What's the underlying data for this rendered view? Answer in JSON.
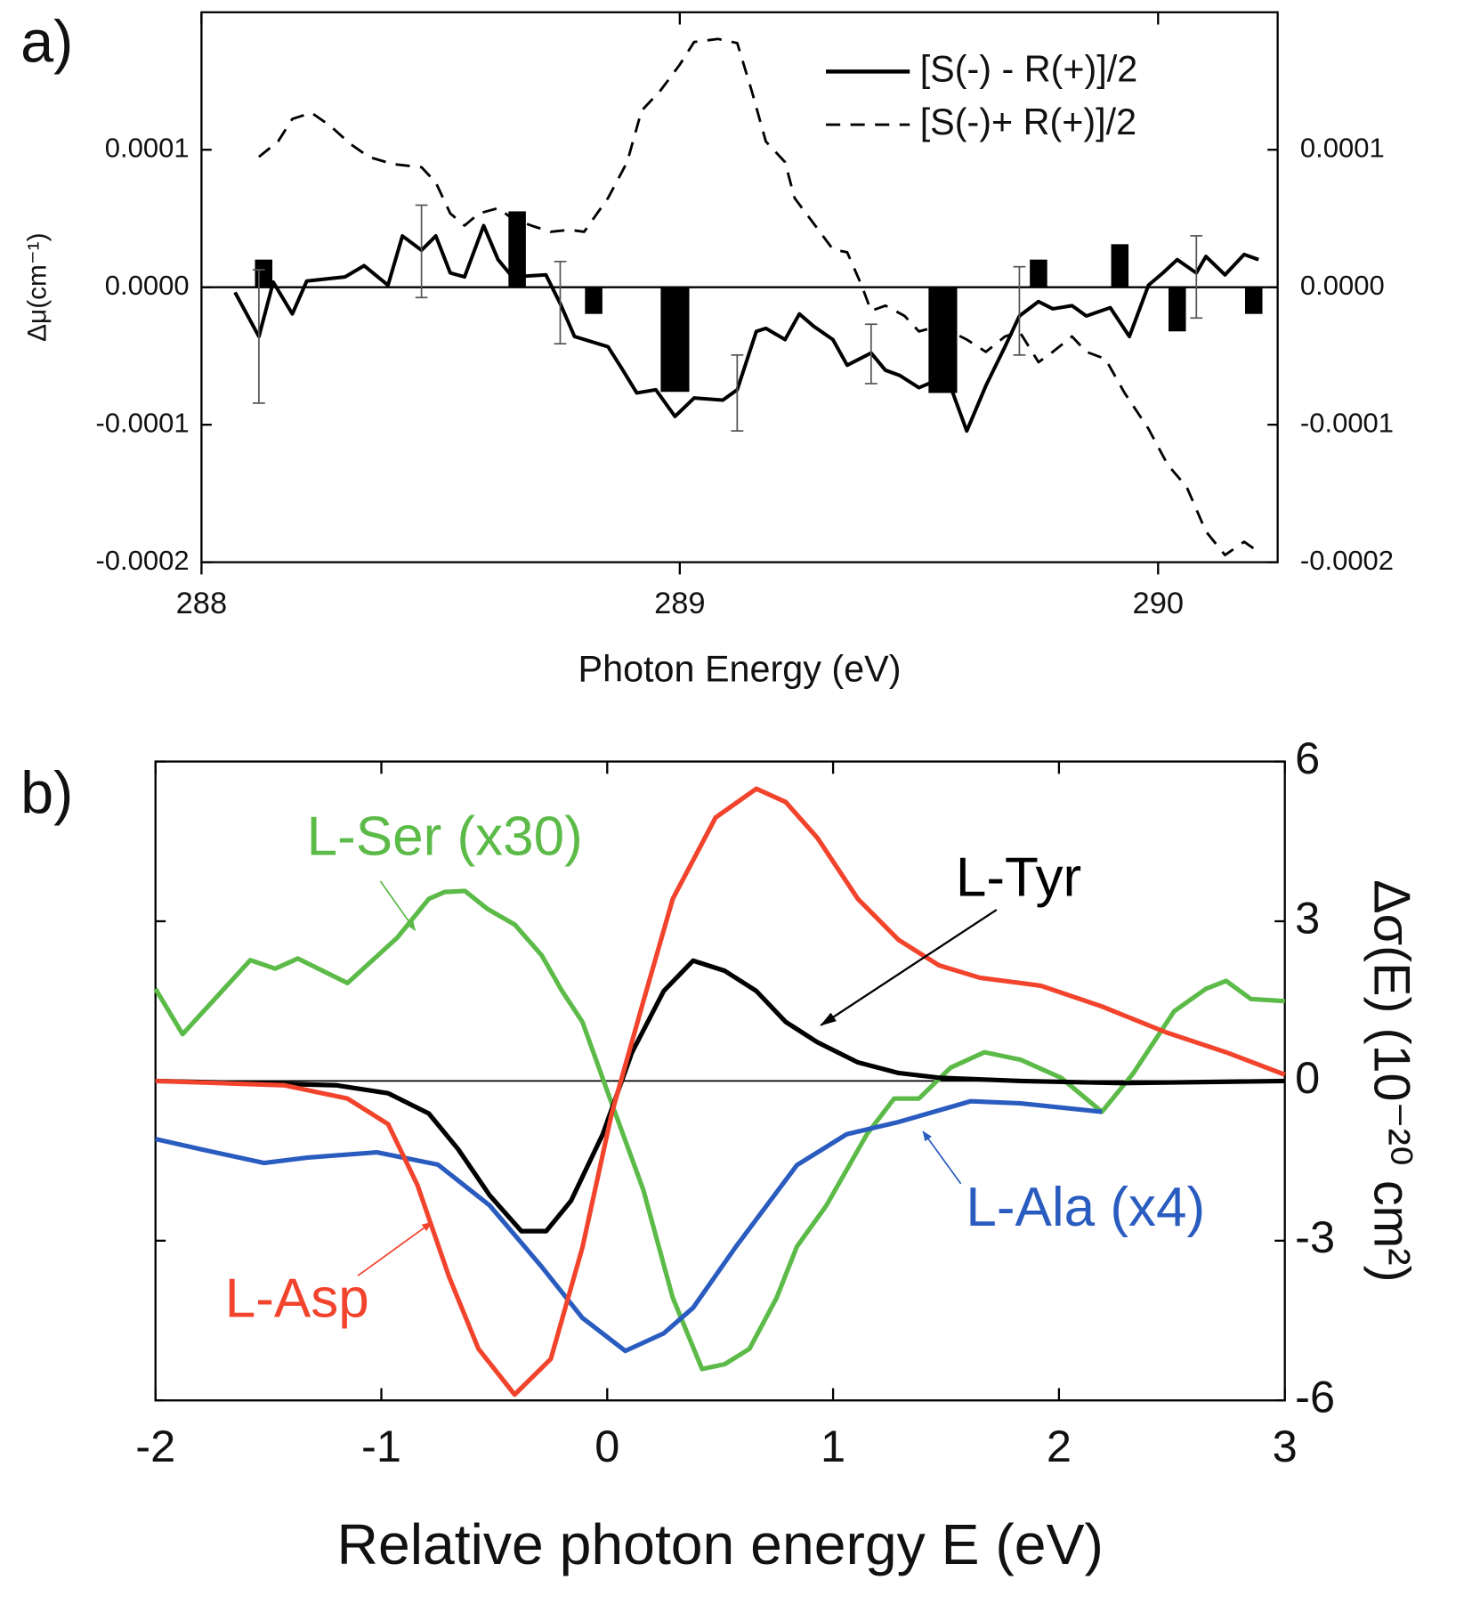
{
  "chart_data": [
    {
      "type": "line",
      "panel": "a)",
      "xlabel": "Photon Energy (eV)",
      "ylabel": "Δμ(cm⁻¹)",
      "xlim": [
        288,
        290.25
      ],
      "xticks": [
        288,
        289,
        290
      ],
      "ylim": [
        -0.0002,
        0.0002
      ],
      "yticks": [
        {
          "value": -0.0002,
          "label": "-0.0002"
        },
        {
          "value": -0.0001,
          "label": "-0.0001"
        },
        {
          "value": 0,
          "label": "0.0000"
        },
        {
          "value": 0.0001,
          "label": "0.0001"
        }
      ],
      "legend": "upper right",
      "series": [
        {
          "name": "[S(-) - R(+)]/2",
          "color": "#000000",
          "style": "solid",
          "x": [
            288.07,
            288.12,
            288.15,
            288.19,
            288.22,
            288.3,
            288.34,
            288.39,
            288.42,
            288.46,
            288.49,
            288.52,
            288.55,
            288.59,
            288.62,
            288.65,
            288.72,
            288.75,
            288.78,
            288.85,
            288.88,
            288.91,
            288.95,
            288.99,
            289.03,
            289.09,
            289.12,
            289.16,
            289.18,
            289.22,
            289.25,
            289.28,
            289.32,
            289.35,
            289.4,
            289.43,
            289.46,
            289.5,
            289.53,
            289.57,
            289.6,
            289.64,
            289.68,
            289.71,
            289.75,
            289.78,
            289.82,
            289.85,
            289.9,
            289.94,
            289.98,
            290.01,
            290.04,
            290.08,
            290.1,
            290.14,
            290.18,
            290.21
          ],
          "values": [
            -3.7e-06,
            -3.58e-05,
            3.7e-06,
            -1.94e-05,
            4.5e-06,
            7.5e-06,
            1.57e-05,
            1.5e-06,
            3.73e-05,
            2.69e-05,
            3.73e-05,
            1.04e-05,
            7.5e-06,
            4.48e-05,
            2.01e-05,
            7.5e-06,
            9e-06,
            -1.19e-05,
            -3.58e-05,
            -4.33e-05,
            -5.97e-05,
            -7.69e-05,
            -7.46e-05,
            -9.4e-05,
            -8.06e-05,
            -8.21e-05,
            -7.46e-05,
            -3.21e-05,
            -2.99e-05,
            -3.81e-05,
            -1.94e-05,
            -2.84e-05,
            -3.81e-05,
            -5.67e-05,
            -4.78e-05,
            -6.04e-05,
            -6.42e-05,
            -7.31e-05,
            -6.87e-05,
            -7.61e-05,
            -0.0001045,
            -7.16e-05,
            -4.33e-05,
            -2.09e-05,
            -1.04e-05,
            -1.57e-05,
            -1.34e-05,
            -2.09e-05,
            -1.49e-05,
            -3.58e-05,
            1.5e-06,
            1.04e-05,
            2.01e-05,
            1.04e-05,
            2.24e-05,
            9e-06,
            2.39e-05,
            2.01e-05
          ]
        },
        {
          "name": "[S(-)+ R(+)]/2",
          "color": "#000000",
          "style": "dashed",
          "x": [
            288.12,
            288.16,
            288.19,
            288.23,
            288.27,
            288.31,
            288.35,
            288.4,
            288.46,
            288.49,
            288.52,
            288.55,
            288.58,
            288.62,
            288.65,
            288.69,
            288.73,
            288.77,
            288.8,
            288.85,
            288.89,
            288.92,
            288.96,
            289.0,
            289.03,
            289.08,
            289.12,
            289.15,
            289.18,
            289.22,
            289.24,
            289.28,
            289.32,
            289.35,
            289.38,
            289.4,
            289.43,
            289.47,
            289.5,
            289.54,
            289.57,
            289.6,
            289.64,
            289.68,
            289.71,
            289.75,
            289.78,
            289.82,
            289.85,
            289.89,
            289.93,
            289.98,
            290.02,
            290.06,
            290.1,
            290.14,
            290.18,
            290.21
          ],
          "values": [
            9.48e-05,
            0.000106,
            0.0001224,
            0.0001269,
            0.0001172,
            0.0001045,
            9.48e-05,
            8.96e-05,
            8.73e-05,
            7.61e-05,
            5.37e-05,
            4.48e-05,
            5.37e-05,
            5.75e-05,
            5e-05,
            4.48e-05,
            4.03e-05,
            4.18e-05,
            4.03e-05,
            6.49e-05,
            9.1e-05,
            0.0001284,
            0.0001433,
            0.0001619,
            0.0001784,
            0.0001806,
            0.0001776,
            0.0001433,
            0.000106,
            9.1e-05,
            6.49e-05,
            4.63e-05,
            2.76e-05,
            2.54e-05,
            1.5e-06,
            -1.72e-05,
            -1.34e-05,
            -2.09e-05,
            -3.21e-05,
            -2.84e-05,
            -3.28e-05,
            -3.81e-05,
            -4.7e-05,
            -3.58e-05,
            -3.21e-05,
            -5.45e-05,
            -4.7e-05,
            -3.58e-05,
            -4.7e-05,
            -5.22e-05,
            -7.69e-05,
            -0.000103,
            -0.0001291,
            -0.0001455,
            -0.0001776,
            -0.0001948,
            -0.0001851,
            -0.0001925
          ]
        }
      ],
      "bars": {
        "color": "#000000",
        "x": [
          288.13,
          288.66,
          288.82,
          288.99,
          289.55,
          289.75,
          289.92,
          290.04,
          290.2
        ],
        "values": [
          2.01e-05,
          5.52e-05,
          -1.94e-05,
          -7.61e-05,
          -7.69e-05,
          2.01e-05,
          3.13e-05,
          -3.21e-05,
          -1.94e-05
        ]
      },
      "error_bars": {
        "color": "#555555",
        "x": [
          288.12,
          288.46,
          288.75,
          289.12,
          289.4,
          289.71,
          290.08
        ],
        "values": [
          -3.58e-05,
          2.61e-05,
          -1.12e-05,
          -7.69e-05,
          -4.85e-05,
          -1.72e-05,
          7.5e-06
        ],
        "errors": [
          4.85e-05,
          3.36e-05,
          2.99e-05,
          2.76e-05,
          2.16e-05,
          3.21e-05,
          2.99e-05
        ]
      }
    },
    {
      "type": "line",
      "panel": "b)",
      "xlabel": "Relative photon energy E (eV)",
      "ylabel": "Δσ(E) (10⁻²⁰ cm²)",
      "xlim": [
        -2,
        3
      ],
      "xticks": [
        -2,
        -1,
        0,
        1,
        2,
        3
      ],
      "ylim": [
        -6,
        6
      ],
      "yticks": [
        -6,
        -3,
        0,
        3,
        6
      ],
      "ytick_side": "right",
      "series": [
        {
          "name": "L-Ser (x30)",
          "color": "#5cbb48",
          "x": [
            -2.0,
            -1.88,
            -1.58,
            -1.47,
            -1.37,
            -1.15,
            -0.93,
            -0.79,
            -0.72,
            -0.63,
            -0.53,
            -0.41,
            -0.29,
            -0.2,
            -0.11,
            0.02,
            0.16,
            0.29,
            0.42,
            0.52,
            0.63,
            0.75,
            0.84,
            0.97,
            1.15,
            1.27,
            1.38,
            1.52,
            1.67,
            1.83,
            2.01,
            2.19,
            2.33,
            2.51,
            2.65,
            2.74,
            2.85,
            3.0
          ],
          "values": [
            1.73,
            0.88,
            2.27,
            2.11,
            2.3,
            1.84,
            2.69,
            3.42,
            3.55,
            3.57,
            3.23,
            2.94,
            2.36,
            1.69,
            1.11,
            -0.42,
            -2.05,
            -4.07,
            -5.41,
            -5.32,
            -5.03,
            -4.07,
            -3.11,
            -2.34,
            -1.0,
            -0.33,
            -0.33,
            0.25,
            0.54,
            0.4,
            0.06,
            -0.58,
            0.15,
            1.31,
            1.73,
            1.88,
            1.54,
            1.5
          ]
        },
        {
          "name": "L-Tyr",
          "color": "#000000",
          "x": [
            -2.0,
            -1.56,
            -1.2,
            -0.97,
            -0.79,
            -0.66,
            -0.52,
            -0.38,
            -0.27,
            -0.16,
            -0.02,
            0.11,
            0.25,
            0.38,
            0.52,
            0.66,
            0.79,
            0.93,
            1.11,
            1.29,
            1.47,
            1.83,
            2.28,
            3.0
          ],
          "values": [
            0,
            -0.04,
            -0.08,
            -0.23,
            -0.61,
            -1.28,
            -2.15,
            -2.82,
            -2.82,
            -2.25,
            -1.0,
            0.54,
            1.69,
            2.26,
            2.07,
            1.69,
            1.11,
            0.73,
            0.35,
            0.15,
            0.06,
            0,
            -0.04,
            0
          ]
        },
        {
          "name": "L-Ala (x4)",
          "color": "#2a5cc0",
          "x": [
            -2.0,
            -1.79,
            -1.52,
            -1.33,
            -1.02,
            -0.75,
            -0.52,
            -0.29,
            -0.11,
            0.08,
            0.25,
            0.38,
            0.57,
            0.84,
            1.06,
            1.29,
            1.61,
            1.83,
            2.19
          ],
          "values": [
            -1.09,
            -1.29,
            -1.54,
            -1.44,
            -1.34,
            -1.57,
            -2.34,
            -3.49,
            -4.45,
            -5.07,
            -4.74,
            -4.26,
            -3.11,
            -1.58,
            -1.0,
            -0.77,
            -0.38,
            -0.42,
            -0.58
          ]
        },
        {
          "name": "L-Asp",
          "color": "#f2432c",
          "x": [
            -2.0,
            -1.43,
            -1.15,
            -0.97,
            -0.84,
            -0.7,
            -0.57,
            -0.41,
            -0.25,
            -0.11,
            0.02,
            0.16,
            0.29,
            0.48,
            0.66,
            0.79,
            0.93,
            1.11,
            1.29,
            1.47,
            1.65,
            1.92,
            2.19,
            2.47,
            2.74,
            3.0
          ],
          "values": [
            0,
            -0.08,
            -0.33,
            -0.81,
            -1.96,
            -3.68,
            -5.03,
            -5.89,
            -5.22,
            -3.13,
            -0.61,
            1.5,
            3.42,
            4.95,
            5.49,
            5.24,
            4.57,
            3.42,
            2.65,
            2.17,
            1.94,
            1.79,
            1.4,
            0.92,
            0.54,
            0.12
          ]
        }
      ]
    }
  ]
}
